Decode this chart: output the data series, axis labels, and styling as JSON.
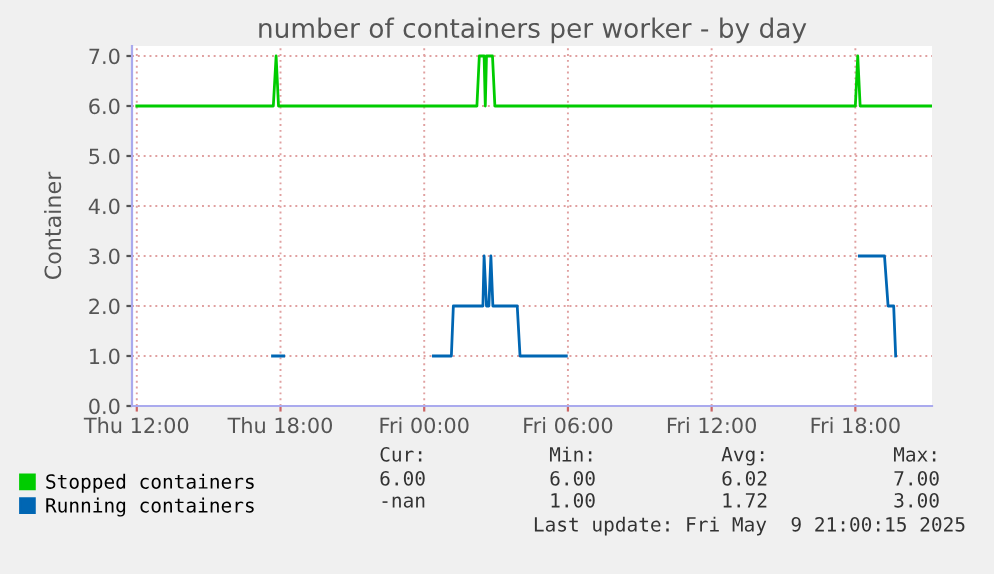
{
  "chart_data": {
    "type": "line",
    "title": "number of containers per worker - by day",
    "ylabel": "Container",
    "xlim": [
      "2025-05-08T11:48",
      "2025-05-09T21:12"
    ],
    "ylim": [
      0,
      7.2
    ],
    "xticks": [
      {
        "value": "2025-05-08T12:00",
        "label": "Thu 12:00"
      },
      {
        "value": "2025-05-08T18:00",
        "label": "Thu 18:00"
      },
      {
        "value": "2025-05-09T00:00",
        "label": "Fri 00:00"
      },
      {
        "value": "2025-05-09T06:00",
        "label": "Fri 06:00"
      },
      {
        "value": "2025-05-09T12:00",
        "label": "Fri 12:00"
      },
      {
        "value": "2025-05-09T18:00",
        "label": "Fri 18:00"
      }
    ],
    "yticks": [
      {
        "value": 0,
        "label": "0.0"
      },
      {
        "value": 1,
        "label": "1.0"
      },
      {
        "value": 2,
        "label": "2.0"
      },
      {
        "value": 3,
        "label": "3.0"
      },
      {
        "value": 4,
        "label": "4.0"
      },
      {
        "value": 5,
        "label": "5.0"
      },
      {
        "value": 6,
        "label": "6.0"
      },
      {
        "value": 7,
        "label": "7.0"
      }
    ],
    "grid": true,
    "legend": "bottom",
    "series": [
      {
        "name": "Stopped containers",
        "color": "#00cc00",
        "x": [
          "2025-05-08T12:00",
          "2025-05-08T17:42",
          "2025-05-08T17:49",
          "2025-05-08T17:55",
          "2025-05-09T02:12",
          "2025-05-09T02:18",
          "2025-05-09T02:30",
          "2025-05-09T02:33",
          "2025-05-09T02:36",
          "2025-05-09T02:51",
          "2025-05-09T02:57",
          "2025-05-09T18:00",
          "2025-05-09T18:06",
          "2025-05-09T18:12",
          "2025-05-09T21:12"
        ],
        "values": [
          6,
          6,
          7,
          6,
          6,
          7,
          7,
          6,
          7,
          7,
          6,
          6,
          7,
          6,
          6
        ]
      },
      {
        "name": "Running containers",
        "color": "#0066b3",
        "x": [
          "2025-05-08T17:40",
          "2025-05-08T18:08",
          "2025-05-08T18:12",
          "2025-05-09T00:23",
          "2025-05-09T01:08",
          "2025-05-09T01:13",
          "2025-05-09T02:27",
          "2025-05-09T02:30",
          "2025-05-09T02:36",
          "2025-05-09T02:42",
          "2025-05-09T02:47",
          "2025-05-09T02:52",
          "2025-05-09T03:53",
          "2025-05-09T04:00",
          "2025-05-09T05:56",
          "2025-05-09T06:00",
          "2025-05-09T18:10",
          "2025-05-09T19:13",
          "2025-05-09T19:22",
          "2025-05-09T19:36",
          "2025-05-09T19:41"
        ],
        "values": [
          1,
          1,
          null,
          1,
          1,
          2,
          2,
          3,
          2,
          2,
          3,
          2,
          2,
          1,
          1,
          null,
          3,
          3,
          2,
          2,
          1
        ]
      }
    ],
    "annotations": [
      "Cur:",
      "Min:",
      "Avg:",
      "Max:",
      "6.00",
      "6.00",
      "6.02",
      "7.00",
      "-nan",
      "1.00",
      "1.72",
      "3.00",
      "Last update: Fri May  9 21:00:15 2025"
    ]
  }
}
